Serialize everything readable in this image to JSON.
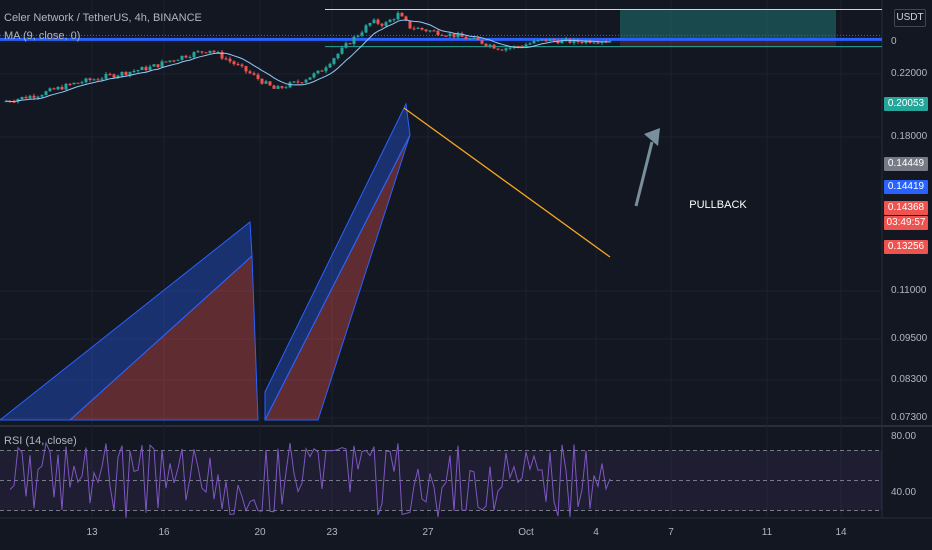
{
  "header": {
    "symbol_line": "Celer Network / TetherUS, 4h, BINANCE",
    "ma_line": "MA (9, close, 0)",
    "currency": "USDT",
    "rsi_label": "RSI (14, close)"
  },
  "colors": {
    "background": "#131722",
    "up": "#26a69a",
    "down": "#ef5350",
    "blue_line": "#2962ff",
    "ma": "#90caf9",
    "rsi": "#7e57c2",
    "target_zone": "#1d5c52",
    "trendline": "#f5a623"
  },
  "chart_data": [
    {
      "type": "candlestick",
      "title": "",
      "price_scale": [
        0.073,
        0.2,
        0.22,
        0.18,
        0.14449,
        0.11,
        0.095,
        0.083,
        0.073
      ],
      "ylim": [
        0.068,
        0.24
      ],
      "y_tick_labels": [
        "0",
        "0.22000",
        "0.18000",
        "0.11000",
        "0.09500",
        "0.08300",
        "0.07300"
      ],
      "x_tick_labels": [
        "13",
        "16",
        "20",
        "23",
        "27",
        "Oct",
        "4",
        "7",
        "11",
        "14"
      ],
      "price_tags": [
        {
          "label": "0.20053",
          "color": "#26a69a"
        },
        {
          "label": "0.14449",
          "color": "#787b86"
        },
        {
          "label": "0.14419",
          "color": "#2962ff"
        },
        {
          "label": "0.14368",
          "color": "#ef5350"
        },
        {
          "label": "03:49:57",
          "color": "#ef5350"
        },
        {
          "label": "0.13256",
          "color": "#ef5350"
        }
      ],
      "levels": {
        "target": 0.20053,
        "upper": 0.14449,
        "current": 0.14368,
        "lower": 0.13256
      },
      "annotations": [
        {
          "text": "PULLBACK"
        }
      ],
      "series": [
        {
          "kind": "ohlc"
        },
        {
          "kind": "ma",
          "period": 9
        }
      ],
      "grid": true
    },
    {
      "type": "line",
      "title": "",
      "ylim": [
        25,
        85
      ],
      "y_tick_labels": [
        "80.00",
        "40.00"
      ],
      "bands": [
        70,
        50,
        30
      ]
    }
  ]
}
